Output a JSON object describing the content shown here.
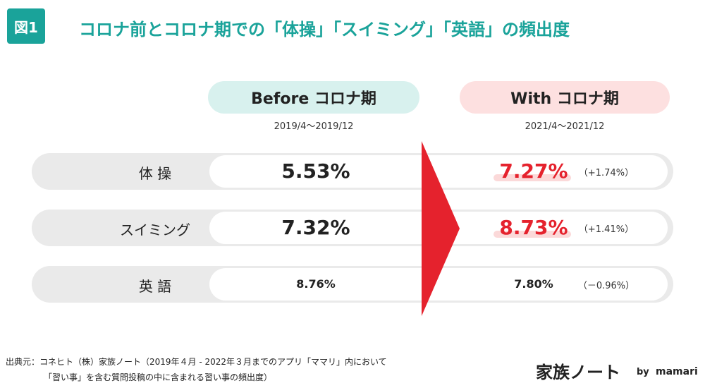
{
  "header": {
    "badge": "図1",
    "title": "コロナ前とコロナ期での「体操」「スイミング」「英語」の頻出度"
  },
  "columns": {
    "before": {
      "label": "Before コロナ期",
      "period": "2019/4〜2019/12"
    },
    "with": {
      "label": "With コロナ期",
      "period": "2021/4〜2021/12"
    }
  },
  "rows": [
    {
      "label": "体 操",
      "before": "5.53%",
      "with": "7.27%",
      "change": "（+1.74%）",
      "highlight": true
    },
    {
      "label": "スイミング",
      "before": "7.32%",
      "with": "8.73%",
      "change": "（+1.41%）",
      "highlight": true
    },
    {
      "label": "英 語",
      "before": "8.76%",
      "with": "7.80%",
      "change": "（－0.96%）",
      "highlight": false
    }
  ],
  "footer": {
    "source": [
      "出典元：コネヒト（株）家族ノート（2019年４月 - 2022年３月までのアプリ「ママリ」内において",
      "「習い事」を含む質問投稿の中に含まれる習い事の頻出度）"
    ],
    "logo": "家族ノート",
    "by": "by",
    "brand": "mamari"
  }
}
